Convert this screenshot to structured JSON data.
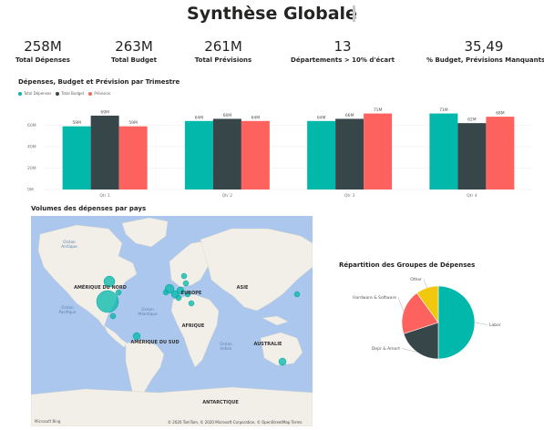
{
  "header": {
    "title": "Synthèse Globale"
  },
  "kpis": [
    {
      "value": "258M",
      "label": "Total Dépenses"
    },
    {
      "value": "263M",
      "label": "Total Budget"
    },
    {
      "value": "261M",
      "label": "Total Prévisions"
    },
    {
      "value": "13",
      "label": "Départements > 10% d'écart"
    },
    {
      "value": "35,49",
      "label": "% Budget, Prévisions Manquants"
    }
  ],
  "bar_section": {
    "title": "Dépenses, Budget et Prévision par Trimestre"
  },
  "map_section": {
    "title": "Volumes des dépenses par pays",
    "labels": {
      "arctic": "Océan\nArctique",
      "north_america": "AMÉRIQUE DU NORD",
      "europe": "EUROPE",
      "asia": "ASIE",
      "pacific": "Océan\nPacifique",
      "atlantic": "Océan\nAtlantique",
      "africa": "AFRIQUE",
      "south_america": "AMÉRIQUE DU SUD",
      "indian": "Océan\nIndien",
      "australia": "AUSTRALIE",
      "antarctica": "ANTARCTIQUE"
    },
    "credit": "© 2020 TomTom, © 2020 Microsoft Corporation, © OpenStreetMap  Terms",
    "logo": "Microsoft Bing"
  },
  "pie_section": {
    "title": "Répartition des Groupes de Dépenses"
  },
  "colors": {
    "teal": "#01b8aa",
    "dark": "#374649",
    "red": "#fd625e",
    "yellow": "#f2c80f",
    "map_water": "#acc7ee",
    "map_land": "#f2efe9"
  },
  "chart_data": [
    {
      "type": "bar",
      "title": "Dépenses, Budget et Prévision par Trimestre",
      "categories": [
        "Qtr 1",
        "Qtr 2",
        "Qtr 3",
        "Qtr 4"
      ],
      "series": [
        {
          "name": "Total Dépenses",
          "color": "#01b8aa",
          "values": [
            59,
            64,
            64,
            71
          ],
          "labels": [
            "59M",
            "64M",
            "64M",
            "71M"
          ]
        },
        {
          "name": "Total Budget",
          "color": "#374649",
          "values": [
            69,
            66,
            66,
            62
          ],
          "labels": [
            "69M",
            "66M",
            "66M",
            "62M"
          ]
        },
        {
          "name": "Prévision",
          "color": "#fd625e",
          "values": [
            59,
            64,
            71,
            68
          ],
          "labels": [
            "59M",
            "64M",
            "71M",
            "68M"
          ]
        }
      ],
      "yticks": [
        {
          "v": 0,
          "label": "0M"
        },
        {
          "v": 20,
          "label": "20M"
        },
        {
          "v": 40,
          "label": "40M"
        },
        {
          "v": 60,
          "label": "60M"
        }
      ],
      "ylim": [
        0,
        80
      ],
      "grid": true,
      "legend": "top-left"
    },
    {
      "type": "pie",
      "title": "Répartition des Groupes de Dépenses",
      "slices": [
        {
          "label": "Labor",
          "value": 50,
          "color": "#01b8aa"
        },
        {
          "label": "Depr & Amort",
          "value": 20,
          "color": "#374649"
        },
        {
          "label": "Hardware & Software",
          "value": 20,
          "color": "#fd625e"
        },
        {
          "label": "Other",
          "value": 10,
          "color": "#f2c80f"
        }
      ]
    }
  ]
}
